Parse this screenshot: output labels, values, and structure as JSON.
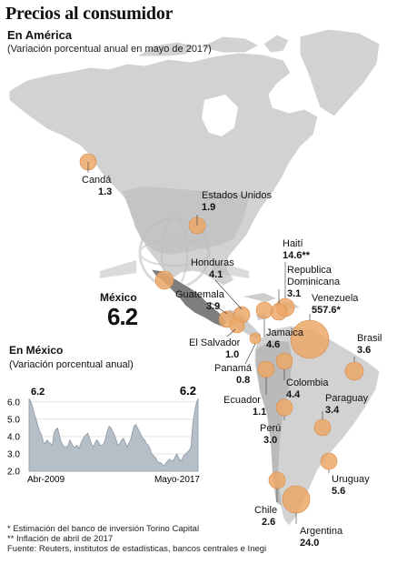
{
  "header": {
    "title": "Precios al consumidor",
    "subtitle": "En América",
    "note": "(Variación porcentual anual en mayo de 2017)"
  },
  "colors": {
    "bubble": "#eca868",
    "bubble_stroke": "#d98a45",
    "land": "#cfcfcf",
    "land_dark": "#a9a9a9",
    "mexico": "#7d7d7d",
    "chart_fill": "#b6bfc8",
    "grid": "#d0d0d0"
  },
  "mexico": {
    "name": "México",
    "value": "6.2"
  },
  "countries": [
    {
      "name": "Candá",
      "value": "1.3"
    },
    {
      "name": "Estados Unidos",
      "value": "1.9"
    },
    {
      "name": "Honduras",
      "value": "4.1"
    },
    {
      "name": "Guatemala",
      "value": "3.9"
    },
    {
      "name": "El Salvador",
      "value": "1.0"
    },
    {
      "name": "Haití",
      "value": "14.6**"
    },
    {
      "name": "Republica Dominicana",
      "value": "3.1"
    },
    {
      "name": "Venezuela",
      "value": "557.6*"
    },
    {
      "name": "Jamaica",
      "value": "4.6"
    },
    {
      "name": "Panamá",
      "value": "0.8"
    },
    {
      "name": "Brasil",
      "value": "3.6"
    },
    {
      "name": "Colombia",
      "value": "4.4"
    },
    {
      "name": "Ecuador",
      "value": "1.1"
    },
    {
      "name": "Paraguay",
      "value": "3.4"
    },
    {
      "name": "Perú",
      "value": "3.0"
    },
    {
      "name": "Uruguay",
      "value": "5.6"
    },
    {
      "name": "Chile",
      "value": "2.6"
    },
    {
      "name": "Argentina",
      "value": "24.0"
    }
  ],
  "inset": {
    "title": "En México",
    "note": "(Variación porcentual anual)"
  },
  "chart_data": {
    "type": "area",
    "title": "En México",
    "subtitle": "(Variación porcentual anual)",
    "x_labels": [
      "Abr-2009",
      "Mayo-2017"
    ],
    "y_ticks": [
      2.0,
      3.0,
      4.0,
      5.0,
      6.0
    ],
    "ylim": [
      2.0,
      6.2
    ],
    "start_label": "6.2",
    "end_label": "6.2",
    "grid": true,
    "values": [
      6.2,
      6.0,
      5.7,
      5.3,
      5.0,
      4.6,
      4.3,
      4.1,
      3.7,
      3.6,
      3.8,
      3.7,
      3.6,
      3.5,
      4.2,
      4.4,
      4.5,
      4.1,
      3.7,
      3.5,
      3.4,
      3.4,
      3.5,
      3.8,
      3.6,
      3.4,
      3.4,
      3.5,
      3.3,
      3.6,
      3.8,
      4.0,
      4.1,
      4.2,
      3.9,
      3.6,
      3.4,
      3.6,
      3.8,
      3.7,
      3.5,
      3.5,
      3.6,
      3.9,
      4.3,
      4.6,
      4.5,
      4.3,
      4.1,
      3.8,
      3.5,
      3.6,
      3.8,
      3.9,
      3.7,
      3.4,
      3.6,
      3.8,
      4.2,
      4.6,
      4.7,
      4.5,
      4.3,
      4.1,
      3.9,
      3.8,
      3.6,
      3.5,
      3.3,
      3.0,
      2.9,
      2.8,
      2.6,
      2.5,
      2.5,
      2.4,
      2.3,
      2.5,
      2.6,
      2.7,
      2.6,
      2.6,
      2.8,
      3.0,
      2.8,
      2.6,
      2.7,
      2.9,
      3.0,
      3.1,
      3.2,
      3.4,
      4.7,
      5.4,
      5.9,
      6.2
    ]
  },
  "footer": {
    "note1": "* Estimación del banco de inversión Torino Capital",
    "note2": "** Inflación de abril de 2017",
    "source": "Fuente: Reuters, institutos de estadísticas, bancos centrales e Inegi"
  }
}
